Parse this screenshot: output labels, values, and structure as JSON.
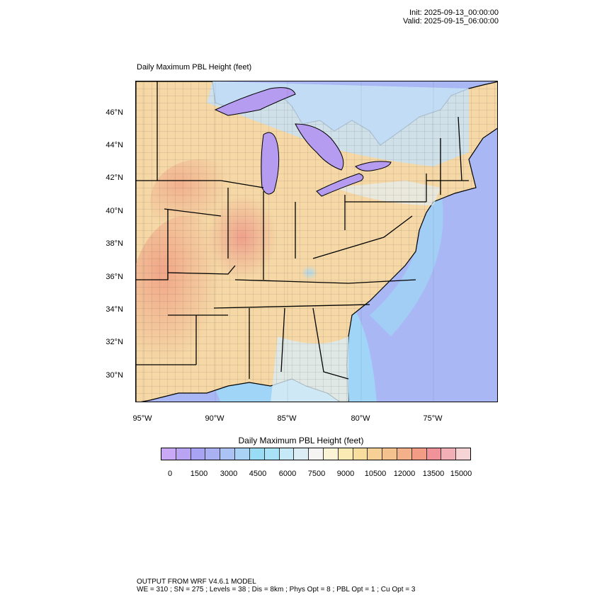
{
  "header": {
    "init": "Init: 2025-09-13_00:00:00",
    "valid": "Valid: 2025-09-15_06:00:00"
  },
  "plot": {
    "title": "Daily Maximum PBL Height   (feet)"
  },
  "map": {
    "lat_labels": [
      "46°N",
      "44°N",
      "42°N",
      "40°N",
      "38°N",
      "36°N",
      "34°N",
      "32°N",
      "30°N"
    ],
    "lon_labels": [
      "95°W",
      "90°W",
      "85°W",
      "80°W",
      "75°W"
    ],
    "colors": {
      "land_warm": "#f5d7a3",
      "land_hot": "#f0a888",
      "land_cool": "#c8e2f5",
      "lake": "#b69cf0",
      "ocean": "#a9b8f5",
      "ocean_near": "#9fdcf7"
    }
  },
  "colorbar": {
    "title": "Daily Maximum PBL Height  (feet)",
    "ticks": [
      "0",
      "1500",
      "3000",
      "4500",
      "6000",
      "7500",
      "9000",
      "10500",
      "12000",
      "13500",
      "15000"
    ],
    "colors": [
      "#c9a9f5",
      "#b9a4f4",
      "#a9a3f3",
      "#a9b1f3",
      "#aac2f4",
      "#a9d2f5",
      "#99dcf6",
      "#a9e2f7",
      "#c5e9f6",
      "#dcedf5",
      "#f4f4f2",
      "#fbf3d5",
      "#fbeab3",
      "#f8de9e",
      "#f6d095",
      "#f4c28f",
      "#f3b089",
      "#f29c86",
      "#f0929a",
      "#f2b0b6",
      "#f6d4d6"
    ]
  },
  "footer": {
    "line1": "OUTPUT FROM WRF V4.6.1 MODEL",
    "line2": "WE = 310 ; SN = 275 ; Levels = 38 ; Dis = 8km ; Phys Opt = 8 ; PBL Opt = 1 ; Cu Opt = 3"
  }
}
